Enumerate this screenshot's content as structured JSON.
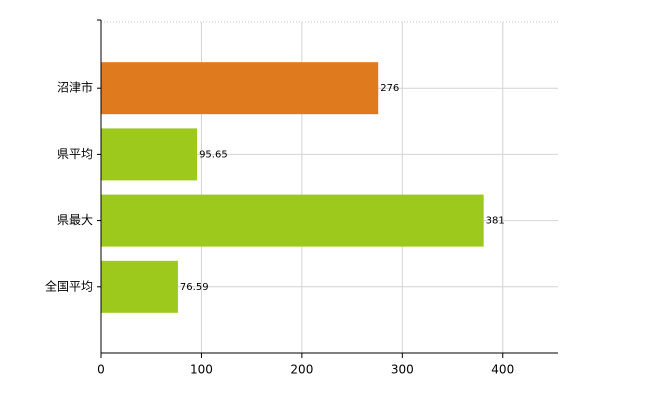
{
  "chart_data": {
    "type": "barh",
    "categories": [
      "沼津市",
      "県平均",
      "県最大",
      "全国平均"
    ],
    "values": [
      276,
      95.65,
      381,
      76.59
    ],
    "colors": [
      "#e07a1f",
      "#9dc91c",
      "#9dc91c",
      "#9dc91c"
    ],
    "xlim": [
      0,
      455
    ],
    "xticks": [
      0,
      100,
      200,
      300,
      400
    ],
    "grid": true
  }
}
